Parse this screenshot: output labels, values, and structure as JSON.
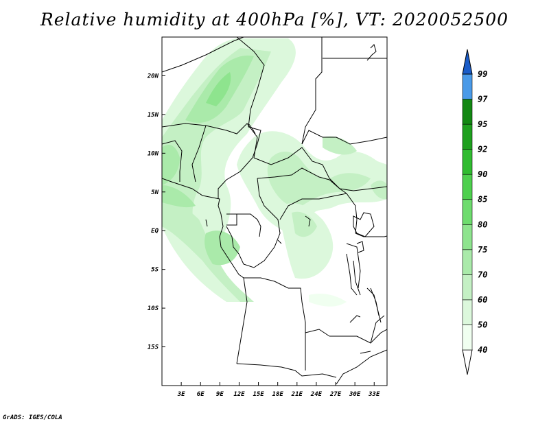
{
  "title": "Relative humidity at 400hPa [%], VT: 2020052500",
  "credit": "GrADS: IGES/COLA",
  "map": {
    "lon_labels": [
      "3E",
      "6E",
      "9E",
      "12E",
      "15E",
      "18E",
      "21E",
      "24E",
      "27E",
      "30E",
      "33E"
    ],
    "lat_labels": [
      "20N",
      "15N",
      "10N",
      "5N",
      "EQ",
      "5S",
      "10S",
      "15S"
    ],
    "lon_range": [
      0,
      35
    ],
    "lat_range": [
      -20,
      25
    ]
  },
  "colorbar": {
    "levels": [
      "40",
      "50",
      "60",
      "70",
      "75",
      "80",
      "85",
      "90",
      "92",
      "95",
      "97",
      "99"
    ],
    "colors": [
      "#f0fff0",
      "#dcf8dc",
      "#c4f0c4",
      "#aaeaaa",
      "#8ee48e",
      "#6edc6e",
      "#4ed04e",
      "#30bc30",
      "#1ea01e",
      "#128812",
      "#4a9ae8",
      "#2a7ad8",
      "#1a5cc8"
    ]
  }
}
